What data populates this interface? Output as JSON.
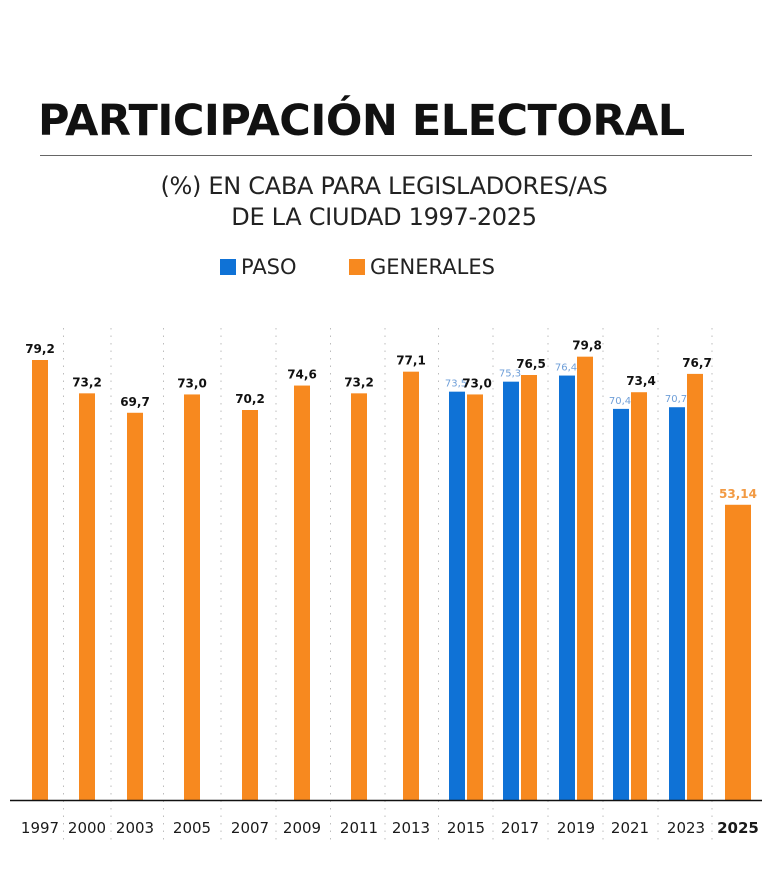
{
  "header": {
    "title": "PARTICIPACIÓN ELECTORAL",
    "subtitle_line1": "(%) EN CABA PARA LEGISLADORES/AS",
    "subtitle_line2": "DE LA CIUDAD 1997-2025"
  },
  "legend": {
    "items": [
      {
        "label": "PASO",
        "color": "#0f72d6"
      },
      {
        "label": "GENERALES",
        "color": "#f7891f"
      }
    ]
  },
  "colors": {
    "paso": "#0f72d6",
    "generales": "#f7891f",
    "paso_label": "#6f9fd8",
    "generales_label": "#111111",
    "highlight_label": "#f29a43",
    "axis": "#111111",
    "grid": "#bdbdbd"
  },
  "chart_data": {
    "type": "bar",
    "title": "PARTICIPACIÓN ELECTORAL",
    "subtitle": "(%) EN CABA PARA LEGISLADORES/AS DE LA CIUDAD 1997-2025",
    "xlabel": "",
    "ylabel": "",
    "ylim": [
      0,
      80
    ],
    "grid": "vertical dotted separators between years",
    "legend_position": "top-center",
    "categories": [
      "1997",
      "2000",
      "2003",
      "2005",
      "2007",
      "2009",
      "2011",
      "2013",
      "2015",
      "2017",
      "2019",
      "2021",
      "2023",
      "2025"
    ],
    "highlight_category": "2025",
    "series": [
      {
        "name": "PASO",
        "values": [
          null,
          null,
          null,
          null,
          null,
          null,
          null,
          null,
          73.5,
          75.3,
          76.4,
          70.4,
          70.7,
          null
        ],
        "labels": [
          null,
          null,
          null,
          null,
          null,
          null,
          null,
          null,
          "73,5",
          "75,3",
          "76,4",
          "70,4",
          "70,7",
          null
        ]
      },
      {
        "name": "GENERALES",
        "values": [
          79.2,
          73.2,
          69.7,
          73.0,
          70.2,
          74.6,
          73.2,
          77.1,
          73.0,
          76.5,
          79.8,
          73.4,
          76.7,
          53.14
        ],
        "labels": [
          "79,2",
          "73,2",
          "69,7",
          "73,0",
          "70,2",
          "74,6",
          "73,2",
          "77,1",
          "73,0",
          "76,5",
          "79,8",
          "73,4",
          "76,7",
          "53,14"
        ]
      }
    ]
  }
}
